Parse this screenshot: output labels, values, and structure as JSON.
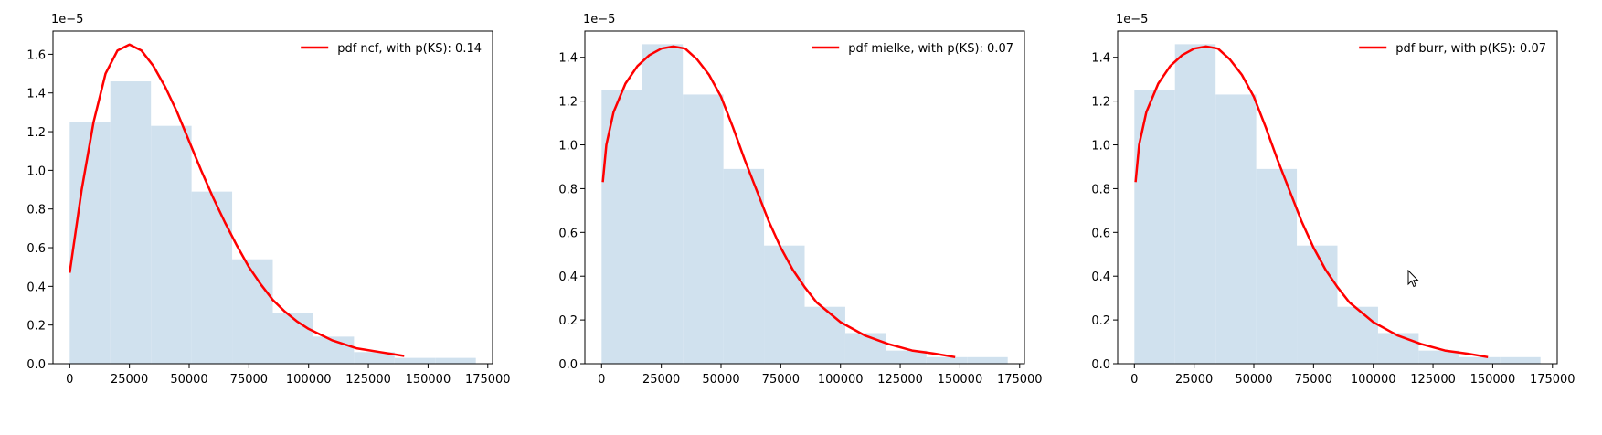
{
  "chart_data": [
    {
      "type": "histogram-with-line",
      "y_offset_label": "1e−5",
      "xlim": [
        -7000,
        177000
      ],
      "ylim": [
        0,
        1.72
      ],
      "xticks": [
        0,
        25000,
        50000,
        75000,
        100000,
        125000,
        150000,
        175000
      ],
      "yticks": [
        0.0,
        0.2,
        0.4,
        0.6,
        0.8,
        1.0,
        1.2,
        1.4,
        1.6
      ],
      "xtick_labels": [
        "0",
        "25000",
        "50000",
        "75000",
        "100000",
        "125000",
        "150000",
        "175000"
      ],
      "ytick_labels": [
        "0.0",
        "0.2",
        "0.4",
        "0.6",
        "0.8",
        "1.0",
        "1.2",
        "1.4",
        "1.6"
      ],
      "histogram": {
        "bin_edges": [
          0,
          17000,
          34000,
          51000,
          68000,
          85000,
          102000,
          119000,
          136000,
          153000,
          170000
        ],
        "values": [
          1.25,
          1.46,
          1.23,
          0.89,
          0.54,
          0.26,
          0.14,
          0.06,
          0.03,
          0.03
        ],
        "color": "#d0e1ee"
      },
      "series": [
        {
          "name": "pdf ncf, with p(KS): 0.14",
          "color": "#ff0000",
          "x": [
            0,
            5000,
            10000,
            15000,
            20000,
            25000,
            30000,
            35000,
            40000,
            45000,
            50000,
            55000,
            60000,
            65000,
            70000,
            75000,
            80000,
            85000,
            90000,
            95000,
            100000,
            110000,
            120000,
            130000,
            140000
          ],
          "y": [
            0.47,
            0.9,
            1.25,
            1.5,
            1.62,
            1.65,
            1.62,
            1.54,
            1.43,
            1.3,
            1.15,
            1.0,
            0.86,
            0.73,
            0.61,
            0.5,
            0.41,
            0.33,
            0.27,
            0.22,
            0.18,
            0.12,
            0.08,
            0.06,
            0.04
          ]
        }
      ],
      "legend": "top-right"
    },
    {
      "type": "histogram-with-line",
      "y_offset_label": "1e−5",
      "xlim": [
        -7000,
        177000
      ],
      "ylim": [
        0,
        1.52
      ],
      "xticks": [
        0,
        25000,
        50000,
        75000,
        100000,
        125000,
        150000,
        175000
      ],
      "yticks": [
        0.0,
        0.2,
        0.4,
        0.6,
        0.8,
        1.0,
        1.2,
        1.4
      ],
      "xtick_labels": [
        "0",
        "25000",
        "50000",
        "75000",
        "100000",
        "125000",
        "150000",
        "175000"
      ],
      "ytick_labels": [
        "0.0",
        "0.2",
        "0.4",
        "0.6",
        "0.8",
        "1.0",
        "1.2",
        "1.4"
      ],
      "histogram": {
        "bin_edges": [
          0,
          17000,
          34000,
          51000,
          68000,
          85000,
          102000,
          119000,
          136000,
          153000,
          170000
        ],
        "values": [
          1.25,
          1.46,
          1.23,
          0.89,
          0.54,
          0.26,
          0.14,
          0.06,
          0.03,
          0.03
        ],
        "color": "#d0e1ee"
      },
      "series": [
        {
          "name": "pdf mielke, with p(KS): 0.07",
          "color": "#ff0000",
          "x": [
            500,
            2000,
            5000,
            10000,
            15000,
            20000,
            25000,
            30000,
            35000,
            40000,
            45000,
            50000,
            55000,
            60000,
            65000,
            70000,
            75000,
            80000,
            85000,
            90000,
            100000,
            110000,
            120000,
            130000,
            140000,
            148000
          ],
          "y": [
            0.83,
            1.0,
            1.15,
            1.28,
            1.36,
            1.41,
            1.44,
            1.45,
            1.44,
            1.39,
            1.32,
            1.22,
            1.08,
            0.93,
            0.79,
            0.65,
            0.53,
            0.43,
            0.35,
            0.28,
            0.19,
            0.13,
            0.09,
            0.06,
            0.045,
            0.03
          ]
        }
      ],
      "legend": "top-right"
    },
    {
      "type": "histogram-with-line",
      "y_offset_label": "1e−5",
      "xlim": [
        -7000,
        177000
      ],
      "ylim": [
        0,
        1.52
      ],
      "xticks": [
        0,
        25000,
        50000,
        75000,
        100000,
        125000,
        150000,
        175000
      ],
      "yticks": [
        0.0,
        0.2,
        0.4,
        0.6,
        0.8,
        1.0,
        1.2,
        1.4
      ],
      "xtick_labels": [
        "0",
        "25000",
        "50000",
        "75000",
        "100000",
        "125000",
        "150000",
        "175000"
      ],
      "ytick_labels": [
        "0.0",
        "0.2",
        "0.4",
        "0.6",
        "0.8",
        "1.0",
        "1.2",
        "1.4"
      ],
      "histogram": {
        "bin_edges": [
          0,
          17000,
          34000,
          51000,
          68000,
          85000,
          102000,
          119000,
          136000,
          153000,
          170000
        ],
        "values": [
          1.25,
          1.46,
          1.23,
          0.89,
          0.54,
          0.26,
          0.14,
          0.06,
          0.03,
          0.03
        ],
        "color": "#d0e1ee"
      },
      "series": [
        {
          "name": "pdf burr, with p(KS): 0.07",
          "color": "#ff0000",
          "x": [
            500,
            2000,
            5000,
            10000,
            15000,
            20000,
            25000,
            30000,
            35000,
            40000,
            45000,
            50000,
            55000,
            60000,
            65000,
            70000,
            75000,
            80000,
            85000,
            90000,
            100000,
            110000,
            120000,
            130000,
            140000,
            148000
          ],
          "y": [
            0.83,
            1.0,
            1.15,
            1.28,
            1.36,
            1.41,
            1.44,
            1.45,
            1.44,
            1.39,
            1.32,
            1.22,
            1.08,
            0.93,
            0.79,
            0.65,
            0.53,
            0.43,
            0.35,
            0.28,
            0.19,
            0.13,
            0.09,
            0.06,
            0.045,
            0.03
          ]
        }
      ],
      "legend": "top-right"
    }
  ],
  "cursor": {
    "icon": "mouse-pointer-icon"
  }
}
